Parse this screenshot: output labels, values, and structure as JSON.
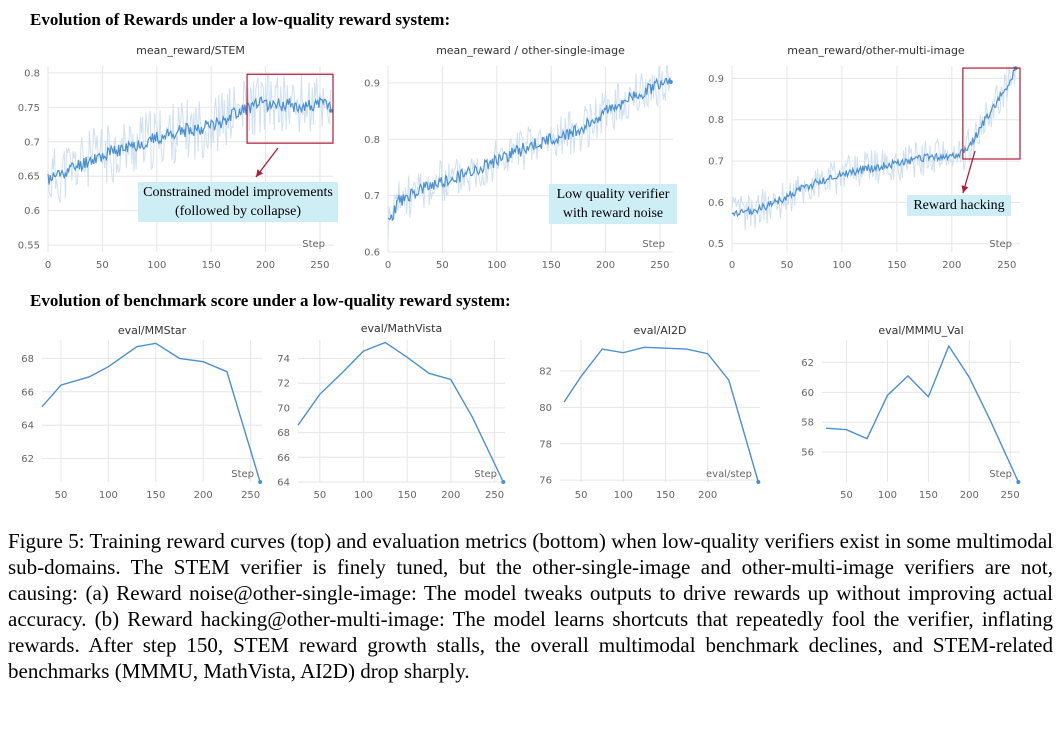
{
  "sections": {
    "top_title": "Evolution of Rewards under a low-quality reward system:",
    "bottom_title": "Evolution of benchmark score under a low-quality reward system:"
  },
  "annotations": {
    "stem_line1": "Constrained model improvements",
    "stem_line2": "(followed by collapse)",
    "single_line1": "Low quality verifier",
    "single_line2": "with reward noise",
    "multi_line1": "Reward hacking"
  },
  "caption": "Figure 5: Training reward curves (top) and evaluation metrics (bottom) when low-quality verifiers exist in some multimodal sub-domains. The STEM verifier is finely tuned, but the other-single-image and other-multi-image verifiers are not, causing: (a) Reward noise@other-single-image: The model tweaks outputs to drive rewards up without improving actual accuracy. (b) Reward hacking@other-multi-image: The model learns shortcuts that repeatedly fool the verifier, inflating rewards. After step 150, STEM reward growth stalls, the overall multimodal benchmark declines, and STEM-related benchmarks (MMMU, MathVista, AI2D) drop sharply.",
  "colors": {
    "line": "#4a90d2",
    "noise": "#cfe0f3",
    "box": "#b01c35",
    "annot_bg": "#cdeef5"
  },
  "chart_data": [
    {
      "id": "stem",
      "type": "line",
      "title": "mean_reward/STEM",
      "xlabel": "Step",
      "xlim": [
        0,
        262
      ],
      "ylim": [
        0.54,
        0.81
      ],
      "xticks": [
        0,
        50,
        100,
        150,
        200,
        250
      ],
      "yticks": [
        0.55,
        0.6,
        0.65,
        0.7,
        0.75,
        0.8
      ],
      "ytick_labels": [
        "0.55",
        "0.6",
        "0.65",
        "0.7",
        "0.75",
        "0.8"
      ],
      "trend_x": [
        0,
        20,
        40,
        60,
        80,
        100,
        120,
        140,
        160,
        175,
        185,
        195,
        210,
        225,
        240,
        255,
        260
      ],
      "trend_y": [
        0.645,
        0.66,
        0.675,
        0.685,
        0.695,
        0.705,
        0.715,
        0.72,
        0.73,
        0.745,
        0.75,
        0.755,
        0.755,
        0.753,
        0.752,
        0.755,
        0.753
      ],
      "noise_amp": 0.01,
      "band_amp": 0.045,
      "seed": 11,
      "highlight_box_x": [
        183,
        262
      ],
      "highlight_box_y": [
        0.698,
        0.798
      ]
    },
    {
      "id": "single",
      "type": "line",
      "title": "mean_reward / other-single-image",
      "xlabel": "Step",
      "xlim": [
        0,
        262
      ],
      "ylim": [
        0.6,
        0.93
      ],
      "xticks": [
        0,
        50,
        100,
        150,
        200,
        250
      ],
      "yticks": [
        0.6,
        0.7,
        0.8,
        0.9
      ],
      "ytick_labels": [
        "0.6",
        "0.7",
        "0.8",
        "0.9"
      ],
      "trend_x": [
        0,
        10,
        30,
        60,
        90,
        120,
        150,
        180,
        200,
        220,
        240,
        260
      ],
      "trend_y": [
        0.65,
        0.69,
        0.71,
        0.73,
        0.755,
        0.78,
        0.8,
        0.82,
        0.85,
        0.87,
        0.89,
        0.91
      ],
      "noise_amp": 0.012,
      "band_amp": 0.04,
      "seed": 23
    },
    {
      "id": "multi",
      "type": "line",
      "title": "mean_reward/other-multi-image",
      "xlabel": "Step",
      "xlim": [
        0,
        262
      ],
      "ylim": [
        0.48,
        0.93
      ],
      "xticks": [
        0,
        50,
        100,
        150,
        200,
        250
      ],
      "yticks": [
        0.5,
        0.6,
        0.7,
        0.8,
        0.9
      ],
      "ytick_labels": [
        "0.5",
        "0.6",
        "0.7",
        "0.8",
        "0.9"
      ],
      "trend_x": [
        0,
        20,
        40,
        60,
        80,
        100,
        120,
        140,
        160,
        180,
        200,
        210,
        220,
        230,
        240,
        250,
        258
      ],
      "trend_y": [
        0.57,
        0.58,
        0.6,
        0.63,
        0.65,
        0.67,
        0.68,
        0.69,
        0.7,
        0.71,
        0.71,
        0.72,
        0.75,
        0.8,
        0.84,
        0.88,
        0.92
      ],
      "noise_amp": 0.01,
      "band_amp": 0.045,
      "seed": 37,
      "highlight_box_x": [
        210,
        262
      ],
      "highlight_box_y": [
        0.705,
        0.925
      ]
    },
    {
      "id": "mmstar",
      "type": "line",
      "title": "eval/MMStar",
      "xlabel": "Step",
      "xlim": [
        30,
        262
      ],
      "ylim": [
        60.6,
        69.1
      ],
      "xticks": [
        50,
        100,
        150,
        200,
        250
      ],
      "yticks": [
        62,
        64,
        66,
        68
      ],
      "ytick_labels": [
        "62",
        "64",
        "66",
        "68"
      ],
      "x": [
        30,
        50,
        80,
        100,
        130,
        150,
        175,
        200,
        225,
        260
      ],
      "y": [
        65.1,
        66.4,
        66.9,
        67.5,
        68.7,
        68.9,
        68.0,
        67.8,
        67.2,
        60.6
      ]
    },
    {
      "id": "mathvista",
      "type": "line",
      "title": "eval/MathVista",
      "xlabel": "Step",
      "xlim": [
        25,
        262
      ],
      "ylim": [
        64.0,
        75.5
      ],
      "xticks": [
        50,
        100,
        150,
        200,
        250
      ],
      "yticks": [
        64,
        66,
        68,
        70,
        72,
        74
      ],
      "ytick_labels": [
        "64",
        "66",
        "68",
        "70",
        "72",
        "74"
      ],
      "x": [
        25,
        50,
        75,
        100,
        125,
        150,
        175,
        200,
        225,
        260
      ],
      "y": [
        68.6,
        71.1,
        72.8,
        74.6,
        75.3,
        74.1,
        72.8,
        72.3,
        69.2,
        64.0
      ]
    },
    {
      "id": "ai2d",
      "type": "line",
      "title": "eval/AI2D",
      "xlabel": "eval/step",
      "xlim": [
        25,
        262
      ],
      "ylim": [
        75.9,
        83.7
      ],
      "xticks": [
        50,
        100,
        150,
        200
      ],
      "yticks": [
        76,
        78,
        80,
        82
      ],
      "ytick_labels": [
        "76",
        "78",
        "80",
        "82"
      ],
      "x": [
        30,
        50,
        75,
        100,
        125,
        150,
        175,
        200,
        225,
        260
      ],
      "y": [
        80.3,
        81.7,
        83.2,
        83.0,
        83.3,
        83.25,
        83.2,
        82.95,
        81.5,
        75.9
      ]
    },
    {
      "id": "mmmu",
      "type": "line",
      "title": "eval/MMMU_Val",
      "xlabel": "Step",
      "xlim": [
        20,
        262
      ],
      "ylim": [
        54.0,
        63.5
      ],
      "xticks": [
        50,
        100,
        150,
        200,
        250
      ],
      "yticks": [
        56,
        58,
        60,
        62
      ],
      "ytick_labels": [
        "56",
        "58",
        "60",
        "62"
      ],
      "x": [
        25,
        50,
        75,
        100,
        125,
        150,
        175,
        200,
        225,
        260
      ],
      "y": [
        57.6,
        57.5,
        56.9,
        59.8,
        61.1,
        59.7,
        63.1,
        61.0,
        58.2,
        54.0
      ]
    }
  ]
}
